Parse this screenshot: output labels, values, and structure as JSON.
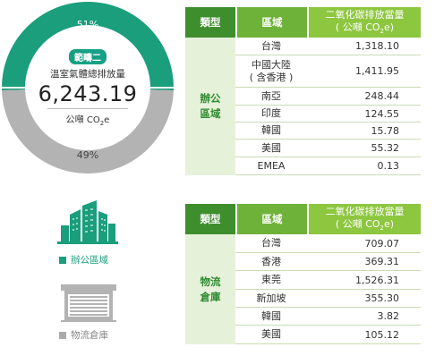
{
  "summary": {
    "scope_badge": "範疇二",
    "title": "溫室氣體總排放量",
    "total": "6,243.19",
    "unit_prefix": "公噸 CO",
    "unit_sub": "2",
    "unit_suffix": "e",
    "office_pct": "51%",
    "warehouse_pct": "49%"
  },
  "chart_data": {
    "type": "pie",
    "categories": [
      "辦公區域",
      "物流倉庫"
    ],
    "values": [
      51,
      49
    ],
    "colors": [
      "#1a9e7c",
      "#b3b3b3"
    ]
  },
  "legend": {
    "office": "辦公區域",
    "warehouse": "物流倉庫"
  },
  "colors": {
    "office": "#1a9e7c",
    "warehouse": "#b3b3b3",
    "header_dark": "#3e8e2e",
    "header_mid": "#6fb23a",
    "header_light": "#8dc63f"
  },
  "table_office": {
    "header": {
      "type": "類型",
      "region": "區域",
      "co2_line1": "二氧化碳排放當量",
      "co2_prefix": "( 公噸 CO",
      "co2_sub": "2",
      "co2_suffix": "e)"
    },
    "type_label": "辦公\n區域",
    "rows": [
      {
        "region": "台灣",
        "value": "1,318.10"
      },
      {
        "region": "中國大陸\n( 含香港 )",
        "value": "1,411.95"
      },
      {
        "region": "南亞",
        "value": "248.44"
      },
      {
        "region": "印度",
        "value": "124.55"
      },
      {
        "region": "韓國",
        "value": "15.78"
      },
      {
        "region": "美國",
        "value": "55.32"
      },
      {
        "region": "EMEA",
        "value": "0.13"
      }
    ]
  },
  "table_warehouse": {
    "header": {
      "type": "類型",
      "region": "區域",
      "co2_line1": "二氧化碳排放當量",
      "co2_prefix": "( 公噸 CO",
      "co2_sub": "2",
      "co2_suffix": "e)"
    },
    "type_label": "物流\n倉庫",
    "rows": [
      {
        "region": "台灣",
        "value": "709.07"
      },
      {
        "region": "香港",
        "value": "369.31"
      },
      {
        "region": "東莞",
        "value": "1,526.31"
      },
      {
        "region": "新加坡",
        "value": "355.30"
      },
      {
        "region": "韓國",
        "value": "3.82"
      },
      {
        "region": "美國",
        "value": "105.12"
      }
    ]
  }
}
